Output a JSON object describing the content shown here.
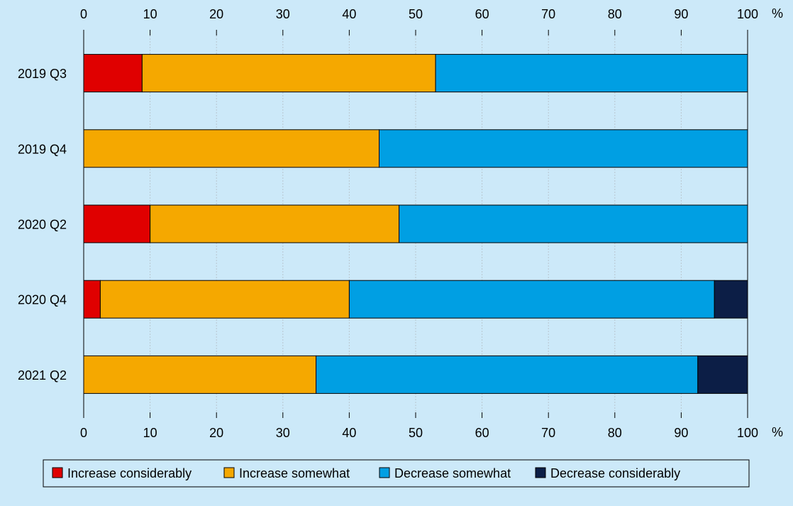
{
  "chart_data": {
    "type": "bar",
    "orientation": "horizontal",
    "stacked": true,
    "categories": [
      "2019 Q3",
      "2019 Q4",
      "2020 Q2",
      "2020 Q4",
      "2021 Q2"
    ],
    "series": [
      {
        "name": "Increase considerably",
        "color": "#e00000",
        "values": [
          8.8,
          0,
          10,
          2.5,
          0
        ]
      },
      {
        "name": "Increase somewhat",
        "color": "#f5a800",
        "values": [
          44.2,
          44.5,
          37.5,
          37.5,
          35
        ]
      },
      {
        "name": "Decrease somewhat",
        "color": "#009fe3",
        "values": [
          47,
          55.5,
          52.5,
          55,
          57.5
        ]
      },
      {
        "name": "Decrease considerably",
        "color": "#0c1e46",
        "values": [
          0,
          0,
          0,
          5,
          7.5
        ]
      }
    ],
    "xlim": [
      0,
      100
    ],
    "x_ticks": [
      "0",
      "10",
      "20",
      "30",
      "40",
      "50",
      "60",
      "70",
      "80",
      "90",
      "100"
    ],
    "unit": "%",
    "grid": true,
    "legend": "bottom"
  }
}
